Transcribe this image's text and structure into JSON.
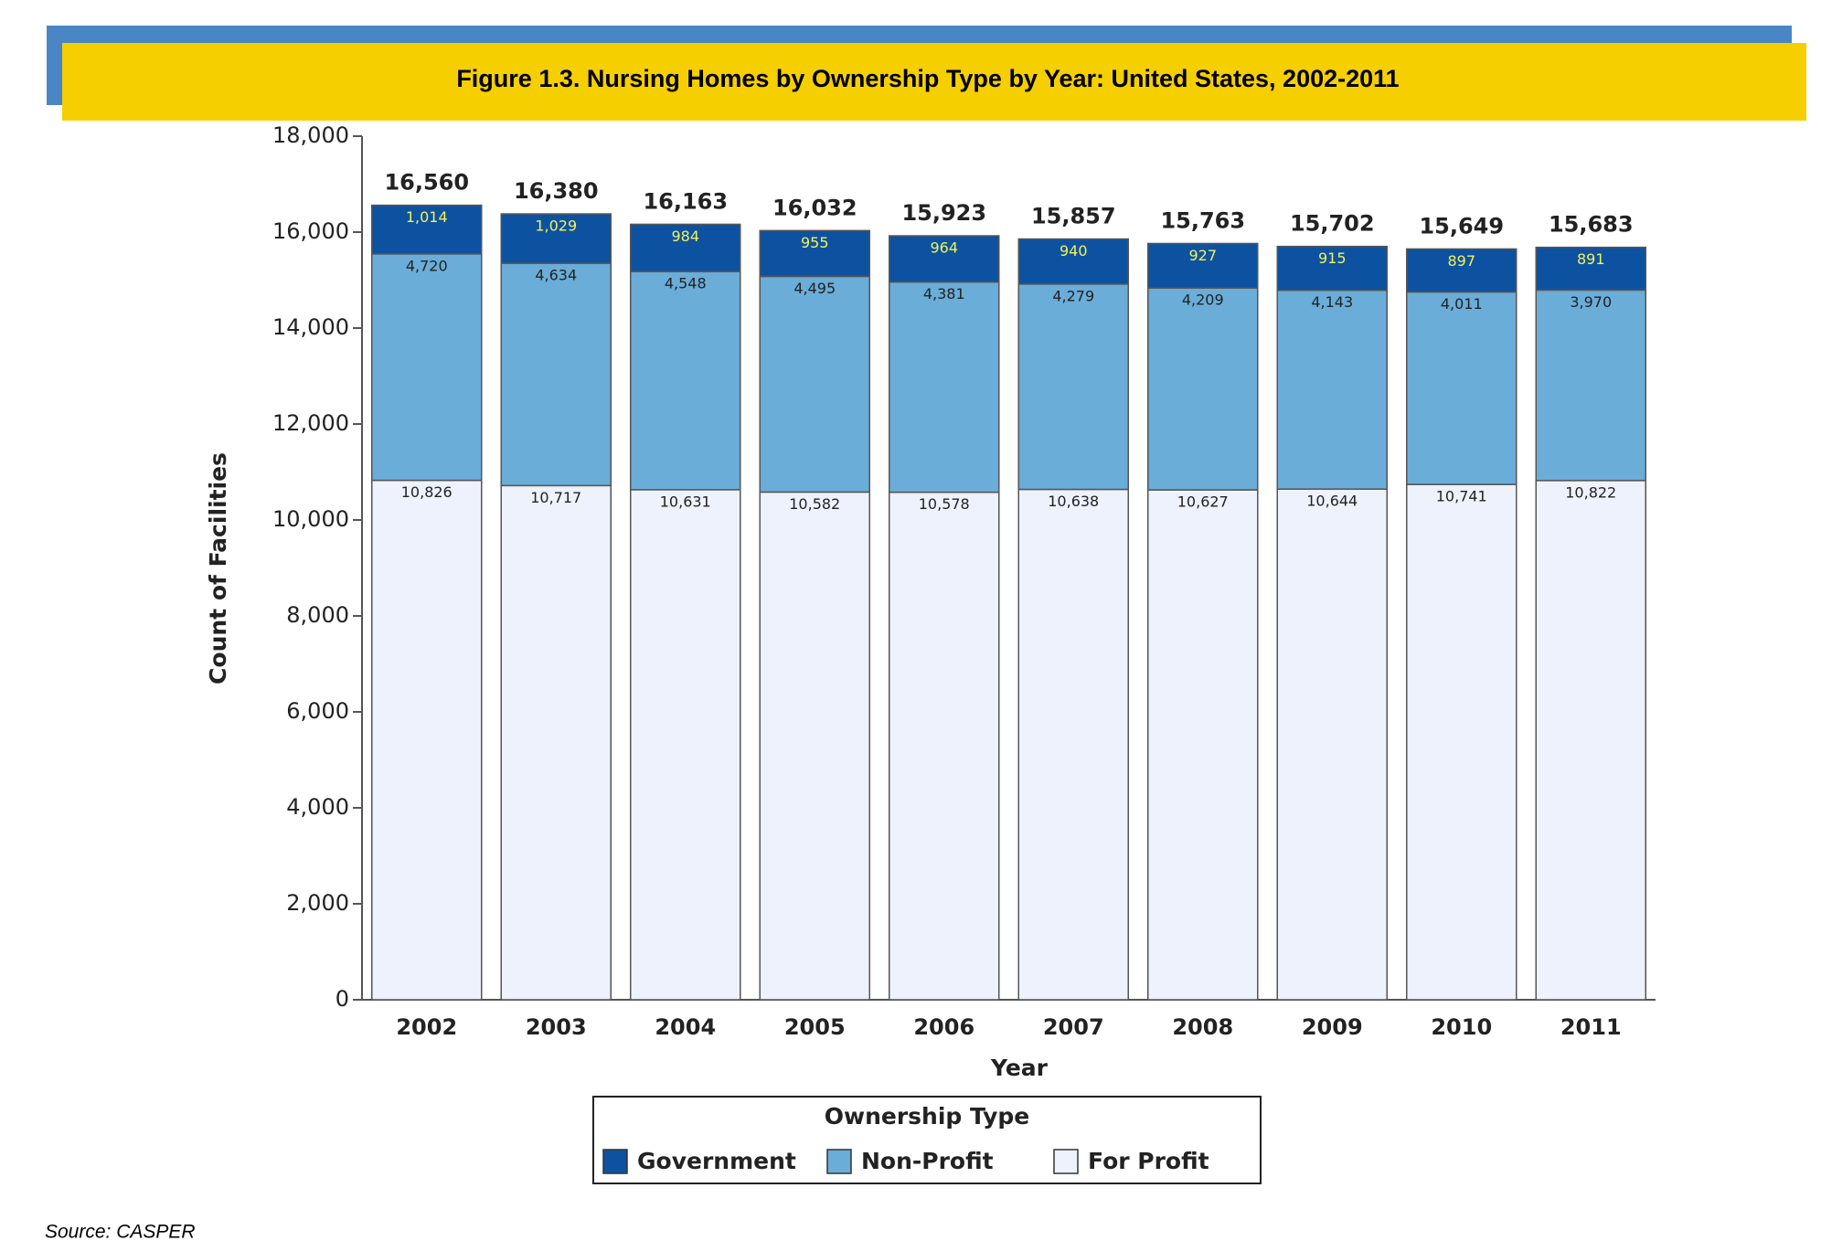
{
  "source": "Source: CASPER",
  "chart_data": {
    "type": "stacked-bar",
    "title": "Figure 1.3. Nursing Homes by Ownership Type by Year: United States, 2002-2011",
    "x_label": "Year",
    "y_label": "Count of Facilities",
    "legend_title": "Ownership Type",
    "categories": [
      "2002",
      "2003",
      "2004",
      "2005",
      "2006",
      "2007",
      "2008",
      "2009",
      "2010",
      "2011"
    ],
    "series": [
      {
        "name": "For Profit",
        "color": "#eef2fd",
        "label_color": "#222222",
        "values": [
          10826,
          10717,
          10631,
          10582,
          10578,
          10638,
          10627,
          10644,
          10741,
          10822
        ],
        "value_labels": [
          "10,826",
          "10,717",
          "10,631",
          "10,582",
          "10,578",
          "10,638",
          "10,627",
          "10,644",
          "10,741",
          "10,822"
        ]
      },
      {
        "name": "Non-Profit",
        "color": "#6aadd8",
        "label_color": "#222222",
        "values": [
          4720,
          4634,
          4548,
          4495,
          4381,
          4279,
          4209,
          4143,
          4011,
          3970
        ],
        "value_labels": [
          "4,720",
          "4,634",
          "4,548",
          "4,495",
          "4,381",
          "4,279",
          "4,209",
          "4,143",
          "4,011",
          "3,970"
        ]
      },
      {
        "name": "Government",
        "color": "#0d52a0",
        "label_color": "#f2f25a",
        "values": [
          1014,
          1029,
          984,
          955,
          964,
          940,
          927,
          915,
          897,
          891
        ],
        "value_labels": [
          "1,014",
          "1,029",
          "984",
          "955",
          "964",
          "940",
          "927",
          "915",
          "897",
          "891"
        ]
      }
    ],
    "legend_order": [
      2,
      1,
      0
    ],
    "totals": {
      "values": [
        16560,
        16380,
        16163,
        16032,
        15923,
        15857,
        15763,
        15702,
        15649,
        15683
      ],
      "value_labels": [
        "16,560",
        "16,380",
        "16,163",
        "16,032",
        "15,923",
        "15,857",
        "15,763",
        "15,702",
        "15,649",
        "15,683"
      ]
    },
    "ylim": [
      0,
      18000
    ],
    "yticks": [
      0,
      {
        "value": 2000,
        "label": "2,000"
      },
      {
        "value": 4000,
        "label": "4,000"
      },
      {
        "value": 6000,
        "label": "6,000"
      },
      {
        "value": 8000,
        "label": "8,000"
      },
      {
        "value": 10000,
        "label": "10,000"
      },
      {
        "value": 12000,
        "label": "12,000"
      },
      {
        "value": 14000,
        "label": "14,000"
      },
      {
        "value": 16000,
        "label": "16,000"
      },
      {
        "value": 18000,
        "label": "18,000"
      }
    ]
  }
}
